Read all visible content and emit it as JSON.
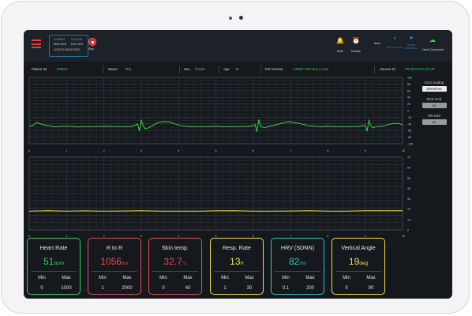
{
  "topbar": {
    "start_time_label": "Start Time",
    "start_time": "12:52:31 26.02.2024",
    "start_clock": "12:08:24",
    "run_time_label": "Run Time",
    "run_clock": "00:12:26",
    "stop_label": "Stop",
    "mute_label": "Mute",
    "disable_label": "Disable",
    "none_label": "None",
    "ant_label": "ANT Sensors",
    "device_conn_label": "Device connected",
    "cloud_label": "Cloud Connected"
  },
  "patient": {
    "id_label": "Patient ID:",
    "id": "000011",
    "name_label": "Name:",
    "name": "Titta",
    "sex_label": "Sex:",
    "sex": "female",
    "age_label": "Age:",
    "age": "45",
    "fw_label": "FW Version:",
    "fw": "KPWF-100-v0.9.2-rc19",
    "device_label": "Device ID:",
    "device": "F8:3E:A4:EC:3C:4F"
  },
  "sidebar": {
    "ecg_scaling_label": "ECG Scaling",
    "ecg_scaling_value": "10mm/mV",
    "ecg_grid_label": "ECG Grid",
    "ecg_grid_value": "on",
    "rr_grid_label": "RR Grid",
    "rr_grid_value": "on"
  },
  "chart_data": [
    {
      "type": "line",
      "name": "ecg",
      "ylim": [
        -100,
        100
      ],
      "yticks": [
        "100",
        "80",
        "60",
        "40",
        "20",
        "0",
        "-20",
        "-40",
        "-60",
        "-80",
        "-100"
      ],
      "xlim": [
        0,
        10
      ],
      "xticks": [
        "0",
        "1",
        "2",
        "3",
        "4",
        "5",
        "6",
        "7",
        "8",
        "9",
        "10"
      ],
      "x": [
        0,
        0.1,
        0.15,
        0.2,
        0.25,
        0.35,
        0.5,
        0.65,
        0.8,
        0.9,
        1.05,
        1.3,
        1.6,
        1.8,
        2.1,
        2.3,
        2.7,
        2.8,
        2.9,
        2.95,
        3.0,
        3.05,
        3.1,
        3.2,
        3.3,
        3.45,
        3.6,
        3.75,
        3.9,
        4.1,
        4.3,
        4.5,
        4.8,
        5.0,
        5.2,
        5.6,
        5.8,
        6.0,
        6.05,
        6.1,
        6.15,
        6.2,
        6.3,
        6.4,
        6.6,
        6.8,
        6.95,
        7.2,
        7.5,
        7.8,
        8.0,
        8.2,
        8.5,
        8.8,
        9.0,
        9.05,
        9.1,
        9.15,
        9.2,
        9.3,
        9.5,
        9.7,
        9.9,
        10
      ],
      "y": [
        -47,
        -45,
        -40,
        -36,
        -38,
        -42,
        -45,
        -48,
        -48,
        -47,
        -47,
        -49,
        -48,
        -48,
        -47,
        -48,
        -48,
        -46,
        -40,
        -62,
        -27,
        -45,
        -55,
        -52,
        -45,
        -36,
        -33,
        -34,
        -40,
        -46,
        -48,
        -48,
        -48,
        -47,
        -48,
        -48,
        -48,
        -46,
        -42,
        -64,
        -27,
        -47,
        -52,
        -48,
        -43,
        -37,
        -33,
        -38,
        -46,
        -48,
        -47,
        -48,
        -48,
        -48,
        -44,
        -62,
        -29,
        -45,
        -52,
        -48,
        -46,
        -40,
        -38,
        -44
      ]
    },
    {
      "type": "line",
      "name": "rr",
      "ylim": [
        0,
        70
      ],
      "yticks": [
        "70",
        "60",
        "50",
        "40",
        "30",
        "20",
        "10",
        "0"
      ],
      "xlim": [
        0,
        10
      ],
      "xticks": [
        "0",
        "1",
        "2",
        "3",
        "4",
        "5",
        "6",
        "7",
        "8",
        "9",
        "10"
      ],
      "x": [
        0,
        0.5,
        1,
        1.5,
        2,
        2.5,
        3,
        3.5,
        4,
        4.5,
        5,
        5.5,
        6,
        6.5,
        7,
        7.5,
        8,
        8.5,
        9,
        9.5,
        10
      ],
      "y": [
        18,
        18.5,
        18,
        18.3,
        18,
        18.2,
        18.4,
        18,
        18.1,
        18,
        18.3,
        18.5,
        18,
        18,
        18.2,
        18.4,
        18,
        18.1,
        18.4,
        18.5,
        18.5
      ]
    }
  ],
  "cards": [
    {
      "title": "Heart Rate",
      "value": "51",
      "unit": "bpm",
      "min_label": "Min",
      "max_label": "Max",
      "min": "0",
      "max": "1000",
      "color": "#3fd04a"
    },
    {
      "title": "R to R",
      "value": "1056",
      "unit": "ms",
      "min_label": "Min",
      "max_label": "Max",
      "min": "1",
      "max": "2000",
      "color": "#e74c4c"
    },
    {
      "title": "Skin temp.",
      "value": "32.7",
      "unit": "°c",
      "min_label": "Min",
      "max_label": "Max",
      "min": "0",
      "max": "40",
      "color": "#e74c4c"
    },
    {
      "title": "Resp. Rate",
      "value": "13",
      "unit": "rr",
      "min_label": "Min",
      "max_label": "Max",
      "min": "1",
      "max": "30",
      "color": "#f0e24a"
    },
    {
      "title": "HRV (SDNN)",
      "value": "82",
      "unit": "ms",
      "min_label": "Min",
      "max_label": "Max",
      "min": "0.1",
      "max": "200",
      "color": "#2fc7c0"
    },
    {
      "title": "Vertical Angle",
      "value": "19",
      "unit": "deg",
      "min_label": "Min",
      "max_label": "Max",
      "min": "0",
      "max": "90",
      "color": "#f0e24a"
    }
  ],
  "colors": {
    "ecg_line": "#3fd04a",
    "rr_line": "#e6e43a",
    "grid": "#3a3f45"
  }
}
